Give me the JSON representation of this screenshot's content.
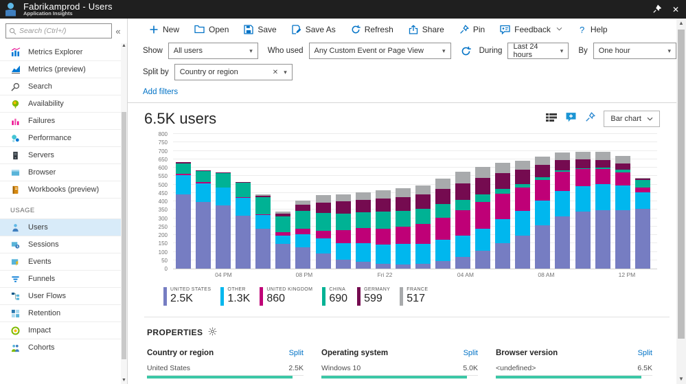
{
  "titlebar": {
    "title": "Fabrikamprod - Users",
    "subtitle": "Application Insights",
    "close_glyph": "✕"
  },
  "sidebar": {
    "search_placeholder": "Search (Ctrl+/)",
    "collapse_glyph": "«",
    "items": [
      {
        "label": "Metrics Explorer",
        "icon": "metrics-explorer-icon"
      },
      {
        "label": "Metrics (preview)",
        "icon": "metrics-preview-icon"
      },
      {
        "label": "Search",
        "icon": "search-icon"
      },
      {
        "label": "Availability",
        "icon": "availability-icon"
      },
      {
        "label": "Failures",
        "icon": "failures-icon"
      },
      {
        "label": "Performance",
        "icon": "performance-icon"
      },
      {
        "label": "Servers",
        "icon": "servers-icon"
      },
      {
        "label": "Browser",
        "icon": "browser-icon"
      },
      {
        "label": "Workbooks (preview)",
        "icon": "workbooks-icon"
      }
    ],
    "section_label": "USAGE",
    "usage_items": [
      {
        "label": "Users",
        "icon": "users-icon",
        "selected": true
      },
      {
        "label": "Sessions",
        "icon": "sessions-icon",
        "selected": false
      },
      {
        "label": "Events",
        "icon": "events-icon",
        "selected": false
      },
      {
        "label": "Funnels",
        "icon": "funnels-icon",
        "selected": false
      },
      {
        "label": "User Flows",
        "icon": "user-flows-icon",
        "selected": false
      },
      {
        "label": "Retention",
        "icon": "retention-icon",
        "selected": false
      },
      {
        "label": "Impact",
        "icon": "impact-icon",
        "selected": false
      },
      {
        "label": "Cohorts",
        "icon": "cohorts-icon",
        "selected": false
      }
    ]
  },
  "toolbar": {
    "buttons": [
      {
        "label": "New",
        "icon": "plus-icon",
        "chevron": false
      },
      {
        "label": "Open",
        "icon": "open-folder-icon",
        "chevron": false
      },
      {
        "label": "Save",
        "icon": "save-icon",
        "chevron": false
      },
      {
        "label": "Save As",
        "icon": "save-as-icon",
        "chevron": false
      },
      {
        "label": "Refresh",
        "icon": "refresh-icon",
        "chevron": false
      },
      {
        "label": "Share",
        "icon": "share-icon",
        "chevron": false
      },
      {
        "label": "Pin",
        "icon": "pin-icon",
        "chevron": false
      },
      {
        "label": "Feedback",
        "icon": "feedback-icon",
        "chevron": true
      },
      {
        "label": "Help",
        "icon": "help-icon",
        "chevron": false
      }
    ]
  },
  "filters": {
    "show_label": "Show",
    "show_value": "All users",
    "who_used_label": "Who used",
    "who_used_value": "Any Custom Event or Page View",
    "during_label": "During",
    "during_value": "Last 24 hours",
    "by_label": "By",
    "by_value": "One hour",
    "split_by_label": "Split by",
    "split_by_value": "Country or region",
    "split_remove_glyph": "✕",
    "add_filters_label": "Add filters"
  },
  "chart_header": {
    "title": "6.5K users",
    "chart_type_value": "Bar chart"
  },
  "chart_data": {
    "type": "bar",
    "stacked": true,
    "title": "6.5K users",
    "xlabel": "",
    "ylabel": "",
    "ylim": [
      0,
      800
    ],
    "ytick_step": 50,
    "grid": true,
    "legend_position": "bottom",
    "x_axis_labels": [
      {
        "index": 2,
        "label": "04 PM"
      },
      {
        "index": 6,
        "label": "08 PM"
      },
      {
        "index": 10,
        "label": "Fri 22"
      },
      {
        "index": 14,
        "label": "04 AM"
      },
      {
        "index": 18,
        "label": "08 AM"
      },
      {
        "index": 22,
        "label": "12 PM"
      }
    ],
    "series": [
      {
        "name": "UNITED STATES",
        "total_label": "2.5K",
        "color": "#767dc2",
        "values": [
          440,
          395,
          375,
          315,
          235,
          145,
          128,
          90,
          55,
          40,
          28,
          25,
          30,
          45,
          70,
          105,
          152,
          198,
          258,
          312,
          338,
          348,
          345,
          355
        ]
      },
      {
        "name": "OTHER",
        "total_label": "1.3K",
        "color": "#00b7ee",
        "values": [
          115,
          112,
          105,
          105,
          82,
          50,
          77,
          88,
          95,
          110,
          115,
          120,
          118,
          125,
          128,
          132,
          140,
          145,
          148,
          150,
          152,
          155,
          150,
          100
        ]
      },
      {
        "name": "UNITED KINGDOM",
        "total_label": "860",
        "color": "#bf0077",
        "values": [
          8,
          6,
          2,
          4,
          7,
          22,
          31,
          48,
          78,
          90,
          95,
          105,
          118,
          132,
          150,
          160,
          155,
          140,
          122,
          112,
          100,
          88,
          78,
          25
        ]
      },
      {
        "name": "CHINA",
        "total_label": "690",
        "color": "#00b294",
        "values": [
          62,
          65,
          85,
          86,
          100,
          93,
          108,
          104,
          100,
          95,
          100,
          95,
          90,
          82,
          62,
          42,
          28,
          20,
          15,
          10,
          8,
          10,
          15,
          45
        ]
      },
      {
        "name": "GERMANY",
        "total_label": "599",
        "color": "#750b50",
        "values": [
          8,
          5,
          3,
          5,
          8,
          15,
          36,
          62,
          72,
          75,
          78,
          80,
          85,
          90,
          95,
          98,
          92,
          85,
          75,
          62,
          52,
          45,
          38,
          10
        ]
      },
      {
        "name": "FRANCE",
        "total_label": "517",
        "color": "#a8aaac",
        "values": [
          0,
          0,
          0,
          0,
          8,
          15,
          25,
          43,
          42,
          45,
          50,
          52,
          55,
          60,
          70,
          68,
          60,
          52,
          48,
          45,
          46,
          50,
          42,
          5
        ]
      }
    ]
  },
  "properties": {
    "header": "PROPERTIES",
    "split_label": "Split",
    "bar_color": "#3cc7a6",
    "columns": [
      {
        "title": "Country or region",
        "row_label": "United States",
        "row_value": "2.5K"
      },
      {
        "title": "Operating system",
        "row_label": "Windows 10",
        "row_value": "5.0K"
      },
      {
        "title": "Browser version",
        "row_label": "<undefined>",
        "row_value": "6.5K"
      }
    ]
  }
}
